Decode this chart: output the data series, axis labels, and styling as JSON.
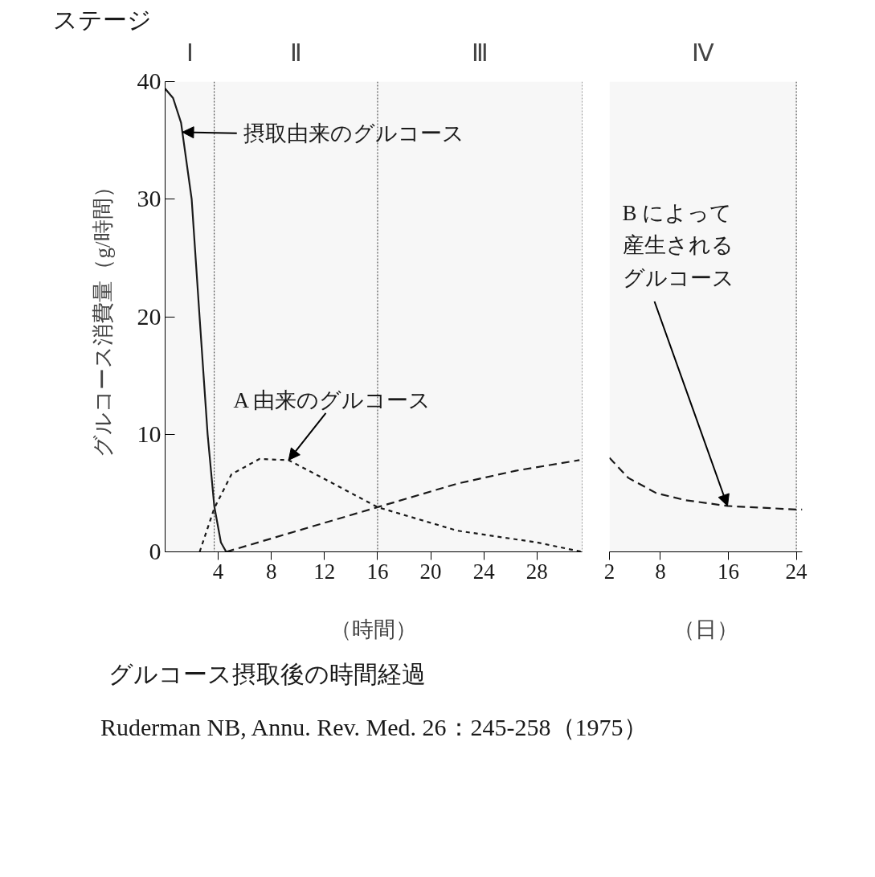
{
  "chart_data": [
    {
      "type": "line",
      "title": "ステージ",
      "ylabel": "グルコース消費量（g/時間）",
      "xlabel": "（時間）",
      "xlim": [
        0,
        31.4
      ],
      "xticks": [
        4,
        8,
        12,
        16,
        20,
        24,
        28
      ],
      "ylim": [
        0,
        40
      ],
      "yticks": [
        0,
        10,
        20,
        30,
        40
      ],
      "bands": [
        {
          "axis": "x",
          "from": 0,
          "to": 3.7,
          "label": "Ⅰ",
          "color": "#f7f7f7"
        },
        {
          "axis": "x",
          "from": 3.7,
          "to": 16,
          "label": "Ⅱ",
          "color": "#f7f7f7"
        },
        {
          "axis": "x",
          "from": 16,
          "to": 31.4,
          "label": "Ⅲ",
          "color": "#f7f7f7"
        }
      ],
      "series": [
        {
          "color": "#1a1a1a",
          "line_style": "solid",
          "x": [
            0,
            0.6,
            1.2,
            2.0,
            2.6,
            3.2,
            3.7,
            4.2,
            4.6
          ],
          "values": [
            39.4,
            38.6,
            36.5,
            30.0,
            19.9,
            10.0,
            3.9,
            0.8,
            0
          ]
        },
        {
          "color": "#1a1a1a",
          "line_style": "dotted",
          "x": [
            2.6,
            3.7,
            5.0,
            7.1,
            9.3,
            12,
            16,
            22,
            28,
            31.4
          ],
          "values": [
            0,
            3.7,
            6.6,
            7.9,
            7.8,
            6.2,
            3.8,
            1.8,
            0.8,
            0
          ]
        },
        {
          "color": "#1a1a1a",
          "line_style": "dashed",
          "x": [
            4.6,
            10,
            16,
            22,
            26.4,
            31.2
          ],
          "values": [
            0,
            1.8,
            3.8,
            5.8,
            6.9,
            7.8
          ]
        }
      ],
      "annotations": [
        {
          "text": "摂取由来のグルコース",
          "x": 1.3,
          "y": 35.7
        },
        {
          "text": "A 由来のグルコース",
          "x": 9.3,
          "y": 7.8
        },
        "グルコース摂取後の時間経過",
        "Ruderman NB, Annu. Rev. Med. 26：245-258（1975）"
      ]
    },
    {
      "type": "line",
      "xlabel": "（日）",
      "xlim": [
        2,
        24.7
      ],
      "xticks": [
        2,
        8,
        16,
        24
      ],
      "ylim": [
        0,
        40
      ],
      "tick_labels": "x",
      "bands": [
        {
          "axis": "x",
          "from": 2,
          "to": 24,
          "label": "Ⅳ",
          "color": "#f7f7f7"
        }
      ],
      "series": [
        {
          "color": "#1a1a1a",
          "line_style": "dashed",
          "x": [
            2,
            4.2,
            7.5,
            10.9,
            15.9,
            24,
            24.7
          ],
          "values": [
            8.0,
            6.3,
            5.0,
            4.4,
            3.9,
            3.6,
            3.6
          ]
        }
      ],
      "annotations": [
        {
          "text": "B によって産生されるグルコース",
          "x": 15.9,
          "y": 3.9
        }
      ]
    }
  ]
}
